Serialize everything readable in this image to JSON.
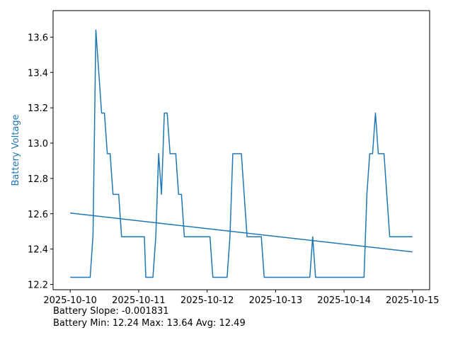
{
  "chart_data": {
    "type": "line",
    "ylabel": "Battery Voltage",
    "xlim": [
      "2025-10-09T18:00",
      "2025-10-15T06:00"
    ],
    "ylim": [
      12.17,
      13.75
    ],
    "x_ticks": [
      "2025-10-10",
      "2025-10-11",
      "2025-10-12",
      "2025-10-13",
      "2025-10-14",
      "2025-10-15"
    ],
    "y_ticks": [
      "12.2",
      "12.4",
      "12.6",
      "12.8",
      "13.0",
      "13.2",
      "13.4",
      "13.6"
    ],
    "grid": false,
    "series": [
      {
        "type": "line",
        "color": "#1f77b4",
        "points": [
          [
            "2025-10-10T00:00",
            12.24
          ],
          [
            "2025-10-10T07:00",
            12.24
          ],
          [
            "2025-10-10T08:00",
            12.48
          ],
          [
            "2025-10-10T09:00",
            13.64
          ],
          [
            "2025-10-10T11:00",
            13.17
          ],
          [
            "2025-10-10T12:00",
            13.17
          ],
          [
            "2025-10-10T13:00",
            12.94
          ],
          [
            "2025-10-10T14:00",
            12.94
          ],
          [
            "2025-10-10T15:00",
            12.71
          ],
          [
            "2025-10-10T17:00",
            12.71
          ],
          [
            "2025-10-10T18:00",
            12.47
          ],
          [
            "2025-10-11T02:00",
            12.47
          ],
          [
            "2025-10-11T02:30",
            12.24
          ],
          [
            "2025-10-11T05:00",
            12.24
          ],
          [
            "2025-10-11T06:00",
            12.47
          ],
          [
            "2025-10-11T07:00",
            12.94
          ],
          [
            "2025-10-11T08:00",
            12.71
          ],
          [
            "2025-10-11T09:00",
            13.17
          ],
          [
            "2025-10-11T10:00",
            13.17
          ],
          [
            "2025-10-11T11:00",
            12.94
          ],
          [
            "2025-10-11T13:00",
            12.94
          ],
          [
            "2025-10-11T14:00",
            12.71
          ],
          [
            "2025-10-11T15:00",
            12.71
          ],
          [
            "2025-10-11T16:00",
            12.47
          ],
          [
            "2025-10-12T01:00",
            12.47
          ],
          [
            "2025-10-12T02:00",
            12.24
          ],
          [
            "2025-10-12T07:00",
            12.24
          ],
          [
            "2025-10-12T08:00",
            12.47
          ],
          [
            "2025-10-12T09:00",
            12.94
          ],
          [
            "2025-10-12T12:00",
            12.94
          ],
          [
            "2025-10-12T14:00",
            12.47
          ],
          [
            "2025-10-12T19:00",
            12.47
          ],
          [
            "2025-10-12T20:00",
            12.24
          ],
          [
            "2025-10-13T12:00",
            12.24
          ],
          [
            "2025-10-13T13:00",
            12.47
          ],
          [
            "2025-10-13T14:00",
            12.24
          ],
          [
            "2025-10-14T07:00",
            12.24
          ],
          [
            "2025-10-14T08:00",
            12.71
          ],
          [
            "2025-10-14T09:00",
            12.94
          ],
          [
            "2025-10-14T10:00",
            12.94
          ],
          [
            "2025-10-14T11:00",
            13.17
          ],
          [
            "2025-10-14T12:00",
            12.94
          ],
          [
            "2025-10-14T14:00",
            12.94
          ],
          [
            "2025-10-14T16:00",
            12.47
          ],
          [
            "2025-10-15T00:00",
            12.47
          ]
        ]
      },
      {
        "type": "trend",
        "color": "#1f77b4",
        "points": [
          [
            "2025-10-10T00:00",
            12.604
          ],
          [
            "2025-10-15T00:00",
            12.384
          ]
        ]
      }
    ],
    "colors": {
      "ylabel": "#1f77b4",
      "axes": "#000000"
    }
  },
  "stats": {
    "slope_line": "Battery Slope: -0.001831",
    "summary_line": "Battery Min: 12.24 Max: 13.64 Avg: 12.49"
  }
}
